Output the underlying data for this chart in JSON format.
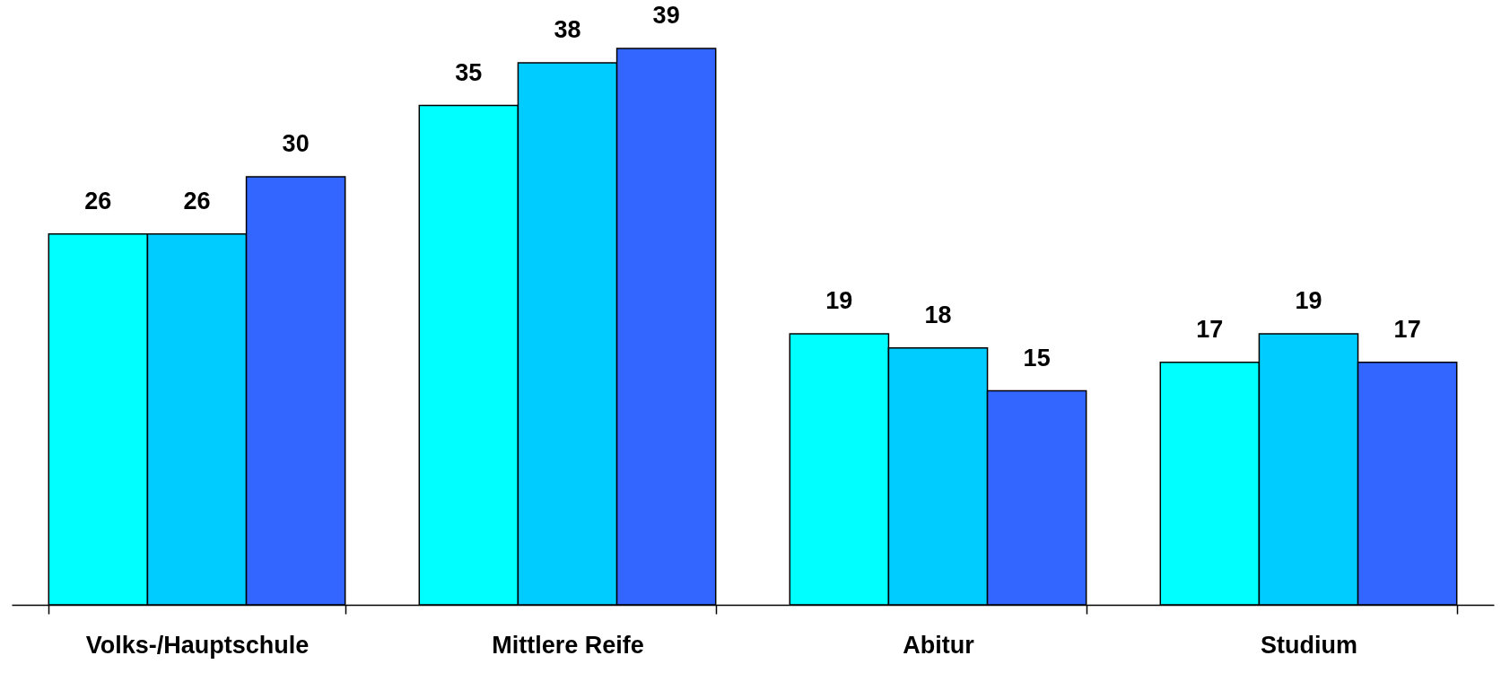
{
  "chart_data": {
    "type": "bar",
    "categories": [
      "Volks-/Hauptschule",
      "Mittlere Reife",
      "Abitur",
      "Studium"
    ],
    "series": [
      {
        "color": "#00ffff",
        "values": [
          26,
          35,
          19,
          17
        ]
      },
      {
        "color": "#00ccff",
        "values": [
          26,
          38,
          18,
          19
        ]
      },
      {
        "color": "#3366ff",
        "values": [
          30,
          39,
          15,
          17
        ]
      }
    ],
    "data_labels": true
  }
}
